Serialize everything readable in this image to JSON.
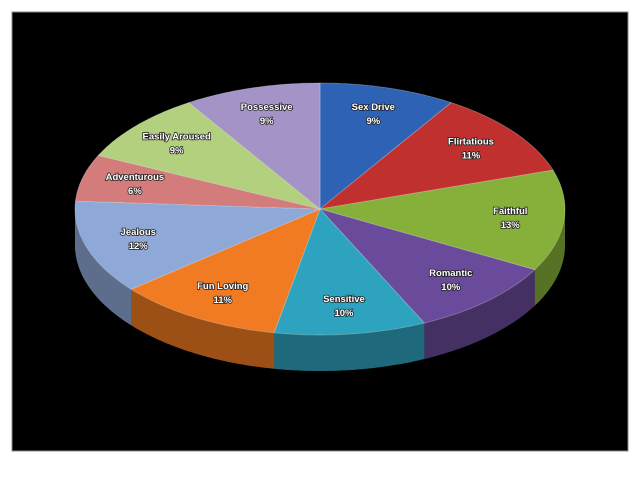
{
  "chart_data": {
    "type": "pie3d",
    "categories": [
      "Sex Drive",
      "Flirtatious",
      "Faithful",
      "Romantic",
      "Sensitive",
      "Fun Loving",
      "Jealous",
      "Adventurous",
      "Easily Aroused",
      "Possessive"
    ],
    "values": [
      9,
      11,
      13,
      10,
      10,
      11,
      12,
      6,
      9,
      9
    ],
    "value_labels": [
      "9%",
      "11%",
      "13%",
      "10%",
      "10%",
      "11%",
      "12%",
      "6%",
      "9%",
      "9%"
    ],
    "colors": [
      "#2e62b4",
      "#c0302f",
      "#86b03a",
      "#6a4a9a",
      "#2ea3bf",
      "#f07b22",
      "#8ea9d8",
      "#d47b7b",
      "#b2d07e",
      "#a393c6"
    ]
  }
}
